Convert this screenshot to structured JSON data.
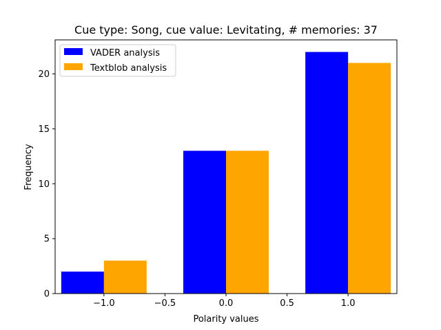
{
  "chart_data": {
    "type": "bar",
    "title": "Cue type: Song, cue value: Levitating, # memories: 37",
    "xlabel": "Polarity values",
    "ylabel": "Frequency",
    "xlim": [
      -1.4,
      1.4
    ],
    "ylim": [
      0,
      23.1
    ],
    "x_ticks": [
      -1.0,
      -0.5,
      0.0,
      0.5,
      1.0
    ],
    "x_tick_labels": [
      "−1.0",
      "−0.5",
      "0.0",
      "0.5",
      "1.0"
    ],
    "y_ticks": [
      0,
      5,
      10,
      15,
      20
    ],
    "y_tick_labels": [
      "0",
      "5",
      "10",
      "15",
      "20"
    ],
    "bar_width": 0.35,
    "categories": [
      -1.0,
      0.0,
      1.0
    ],
    "series": [
      {
        "name": "VADER analysis",
        "color": "#0000ff",
        "offset": -0.175,
        "values": [
          2,
          13,
          22
        ]
      },
      {
        "name": "Textblob analysis",
        "color": "#ffa500",
        "offset": 0.175,
        "values": [
          3,
          13,
          21
        ]
      }
    ],
    "legend_position": "top-left",
    "grid": false
  }
}
